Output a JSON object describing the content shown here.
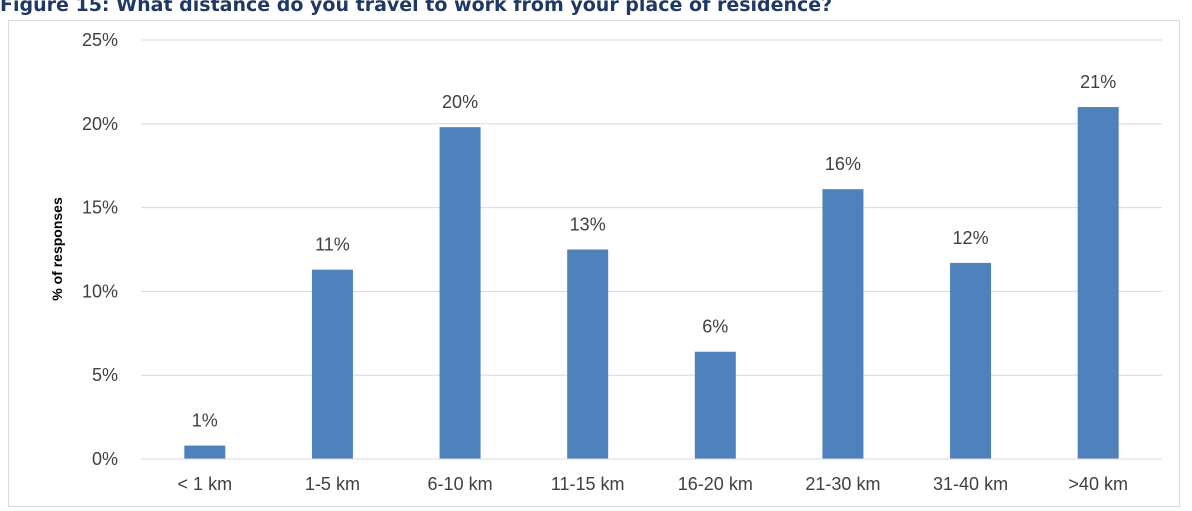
{
  "figure_title": "Figure 15: What distance do you travel to work from your place of residence?",
  "colors": {
    "bar": "#4f81bd",
    "grid": "#d9d9d9",
    "text": "#404040"
  },
  "chart_data": {
    "type": "bar",
    "title": "",
    "xlabel": "",
    "ylabel": "% of responses",
    "categories": [
      "< 1 km",
      "1-5 km",
      "6-10 km",
      "11-15 km",
      "16-20 km",
      "21-30 km",
      "31-40 km",
      ">40 km"
    ],
    "values": [
      0.8,
      11.3,
      19.8,
      12.5,
      6.4,
      16.1,
      11.7,
      21.0
    ],
    "data_labels": [
      "1%",
      "11%",
      "20%",
      "13%",
      "6%",
      "16%",
      "12%",
      "21%"
    ],
    "ylim": [
      0,
      25
    ],
    "y_ticks": [
      0,
      5,
      10,
      15,
      20,
      25
    ],
    "y_tick_labels": [
      "0%",
      "5%",
      "10%",
      "15%",
      "20%",
      "25%"
    ],
    "grid": true,
    "legend": "none"
  }
}
